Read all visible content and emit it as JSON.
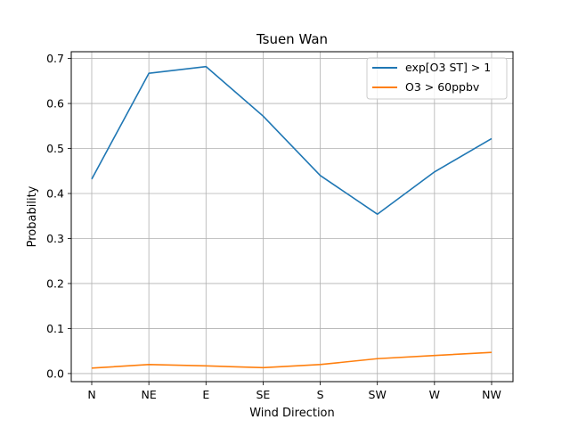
{
  "chart_data": {
    "type": "line",
    "title": "Tsuen Wan",
    "xlabel": "Wind Direction",
    "ylabel": "Probability",
    "categories": [
      "N",
      "NE",
      "E",
      "SE",
      "S",
      "SW",
      "W",
      "NW"
    ],
    "ylim": [
      -0.018,
      0.715
    ],
    "yticks": [
      "0.0",
      "0.1",
      "0.2",
      "0.3",
      "0.4",
      "0.5",
      "0.6",
      "0.7"
    ],
    "grid": true,
    "legend_position": "top-right",
    "series": [
      {
        "name": "exp[O3 ST] > 1",
        "color": "#1f77b4",
        "values": [
          0.432,
          0.667,
          0.682,
          0.572,
          0.44,
          0.354,
          0.448,
          0.522
        ]
      },
      {
        "name": "O3 > 60ppbv",
        "color": "#ff7f0e",
        "values": [
          0.012,
          0.02,
          0.017,
          0.013,
          0.02,
          0.033,
          0.04,
          0.047
        ]
      }
    ]
  }
}
